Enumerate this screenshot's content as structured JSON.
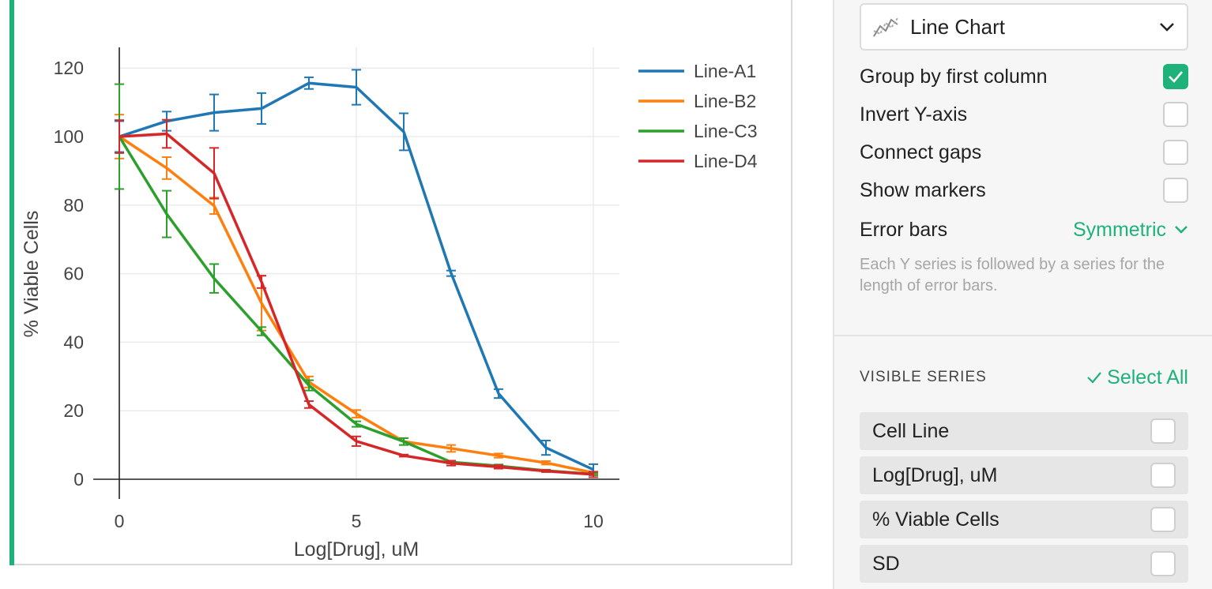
{
  "chart_data": {
    "type": "line",
    "xlabel": "Log[Drug], uM",
    "ylabel": "% Viable Cells",
    "xlim": [
      0,
      10.5
    ],
    "ylim": [
      0,
      125
    ],
    "x_ticks": [
      "0",
      "5",
      "10"
    ],
    "x_tick_values": [
      0,
      5,
      10
    ],
    "y_ticks": [
      "0",
      "20",
      "40",
      "60",
      "80",
      "100",
      "120"
    ],
    "y_tick_values": [
      0,
      20,
      40,
      60,
      80,
      100,
      120
    ],
    "grid": true,
    "legend_position": "top-right",
    "x": [
      0,
      1,
      2,
      3,
      4,
      5,
      6,
      7,
      8,
      9,
      10
    ],
    "series": [
      {
        "name": "Line-A1",
        "color": "#1f77b4",
        "values": [
          100,
          104.5,
          107,
          108.2,
          115.6,
          114.4,
          101.4,
          60.1,
          25,
          9.2,
          2.8
        ],
        "errors": [
          4.5,
          2.8,
          5.3,
          4.5,
          1.7,
          5.1,
          5.4,
          0.8,
          1.3,
          2.1,
          1.6
        ]
      },
      {
        "name": "Line-B2",
        "color": "#ff7f0e",
        "values": [
          100,
          90.8,
          79.8,
          51.4,
          28.4,
          19.1,
          11,
          9,
          6.9,
          4.8,
          1.9
        ],
        "errors": [
          6.4,
          3.2,
          2.4,
          8,
          1.6,
          1.1,
          1,
          1,
          0.6,
          0.5,
          0.3
        ]
      },
      {
        "name": "Line-C3",
        "color": "#2ca02c",
        "values": [
          100,
          77.4,
          58.6,
          43.2,
          27.4,
          16.1,
          11,
          5,
          3.9,
          2.5,
          1.5
        ],
        "errors": [
          15.3,
          6.8,
          4.2,
          1.2,
          1.5,
          0.8,
          1,
          0.4,
          0.4,
          0.3,
          0.3
        ]
      },
      {
        "name": "Line-D4",
        "color": "#d62728",
        "values": [
          100,
          100.8,
          89.3,
          57.6,
          21.8,
          11.1,
          6.9,
          4.7,
          3.6,
          2.4,
          1.4
        ],
        "errors": [
          4.8,
          4.1,
          7.4,
          1.8,
          1,
          1.4,
          0.3,
          0.7,
          0.5,
          0.3,
          0.8
        ]
      }
    ]
  },
  "settings": {
    "chart_type": {
      "label": "Line Chart",
      "icon": "line-chart-icon"
    },
    "options": [
      {
        "label": "Group by first column",
        "checked": true
      },
      {
        "label": "Invert Y-axis",
        "checked": false
      },
      {
        "label": "Connect gaps",
        "checked": false
      },
      {
        "label": "Show markers",
        "checked": false
      }
    ],
    "error_bars": {
      "label": "Error bars",
      "value": "Symmetric"
    },
    "hint": "Each Y series is followed by a series for the length of error bars.",
    "visible_series": {
      "title": "VISIBLE SERIES",
      "select_all": "Select All",
      "items": [
        {
          "label": "Cell Line",
          "checked": false
        },
        {
          "label": "Log[Drug], uM",
          "checked": false
        },
        {
          "label": "% Viable Cells",
          "checked": false
        },
        {
          "label": "SD",
          "checked": false
        }
      ]
    },
    "accent_color": "#1db27a"
  }
}
